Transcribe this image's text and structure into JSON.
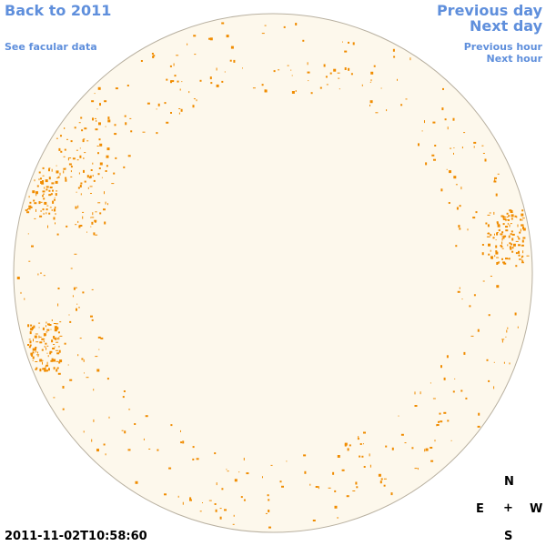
{
  "nav": {
    "back_year": "Back to 2011",
    "facular": "See facular data",
    "prev_day": "Previous day",
    "next_day": "Next day",
    "prev_hour": "Previous hour",
    "next_hour": "Next hour"
  },
  "timestamp": "2011-11-02T10:58:60",
  "compass": {
    "north": "N",
    "east": "E",
    "center": "+",
    "west": "W",
    "south": "S"
  }
}
